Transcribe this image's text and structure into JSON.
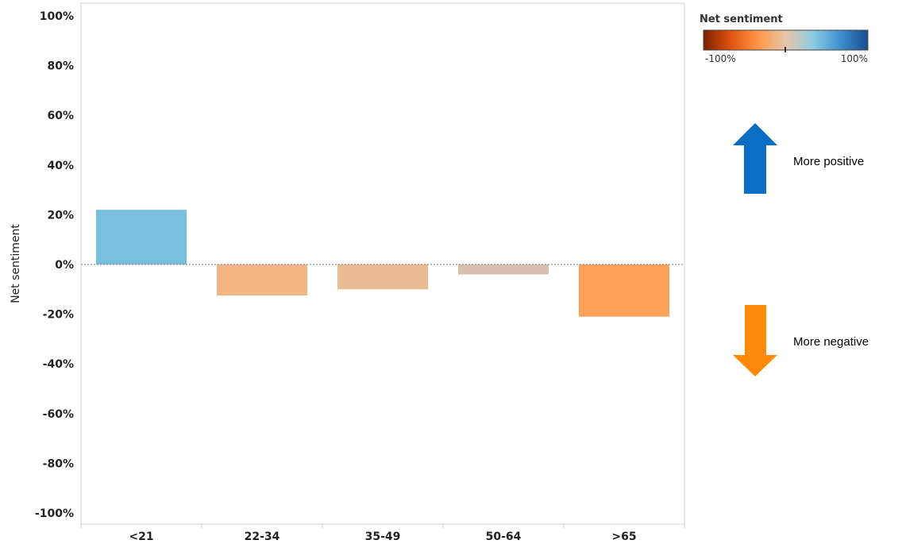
{
  "chart_data": {
    "type": "bar",
    "ylabel": "Net sentiment",
    "xlabel": "",
    "ylim": [
      -100,
      100
    ],
    "yticks": [
      100,
      80,
      60,
      40,
      20,
      0,
      -20,
      -40,
      -60,
      -80,
      -100
    ],
    "ytick_labels": [
      "100%",
      "80%",
      "60%",
      "40%",
      "20%",
      "0%",
      "-20%",
      "-40%",
      "-60%",
      "-80%",
      "-100%"
    ],
    "categories": [
      "<21",
      "22-34",
      "35-49",
      "50-64",
      ">65"
    ],
    "values": [
      22,
      -12.5,
      -10,
      -4,
      -21
    ],
    "bar_colors": [
      "#78bfdd",
      "#f1b482",
      "#ebbb93",
      "#d9c0ae",
      "#fca25a"
    ],
    "zero_line": "dotted",
    "grid": false
  },
  "legend": {
    "title": "Net sentiment",
    "min_label": "-100%",
    "max_label": "100%",
    "gradient_stops": [
      "#7a2100",
      "#e0520e",
      "#ff9848",
      "#e6c6aa",
      "#8ecbe4",
      "#3c8fd0",
      "#1a4d8c"
    ],
    "placement": "top-right"
  },
  "annotations": {
    "positive_label": "More positive",
    "negative_label": "More negative",
    "positive_color": "#0a6fc2",
    "negative_color": "#ff8a0a"
  }
}
